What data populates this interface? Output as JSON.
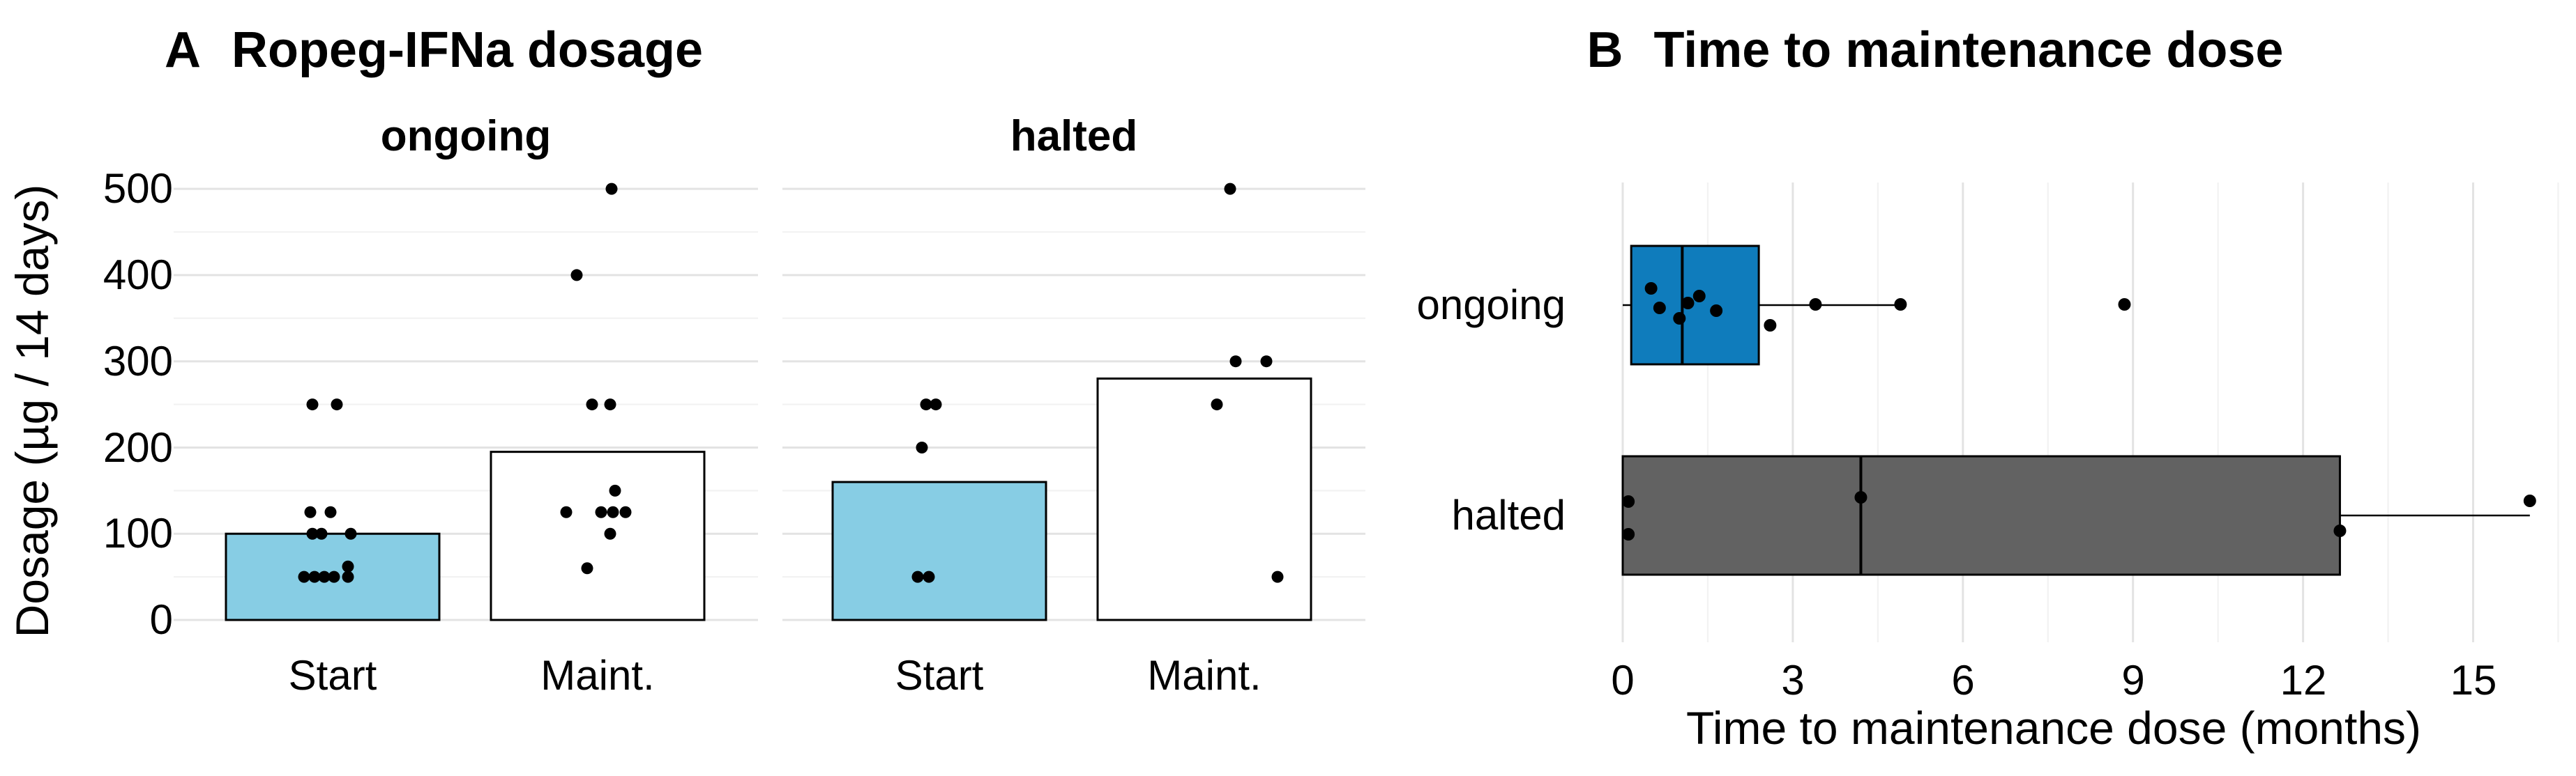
{
  "chart_data": [
    {
      "panel": "A",
      "type": "bar",
      "subtype": "bar-means-with-jittered-points",
      "title_tag": "A",
      "title": "Ropeg-IFNa dosage",
      "ylabel": "Dosage (µg / 14 days)",
      "yticks": [
        0,
        100,
        200,
        300,
        400,
        500
      ],
      "ylim": [
        0,
        525
      ],
      "grid": {
        "orientation": "horizontal",
        "major_every": 100,
        "minor_every": 50,
        "background": "white"
      },
      "colors": {
        "start_bar_fill": "#87CDE4",
        "maint_bar_fill": "#FFFFFF",
        "outline": "#000000",
        "points": "#000000"
      },
      "x_categories": [
        "Start",
        "Maint."
      ],
      "facets": [
        {
          "label": "ongoing",
          "bars": [
            {
              "category": "Start",
              "mean": 100,
              "fill": "#87CDE4",
              "points": [
                {
                  "v": 250,
                  "j": -29
                },
                {
                  "v": 250,
                  "j": 6
                },
                {
                  "v": 125,
                  "j": -32
                },
                {
                  "v": 125,
                  "j": -3
                },
                {
                  "v": 100,
                  "j": -29
                },
                {
                  "v": 100,
                  "j": -16
                },
                {
                  "v": 100,
                  "j": 26
                },
                {
                  "v": 62,
                  "j": 22
                },
                {
                  "v": 50,
                  "j": -41
                },
                {
                  "v": 50,
                  "j": -26
                },
                {
                  "v": 50,
                  "j": -12
                },
                {
                  "v": 50,
                  "j": 2
                },
                {
                  "v": 50,
                  "j": 22
                }
              ]
            },
            {
              "category": "Maint.",
              "mean": 195,
              "fill": "#FFFFFF",
              "points": [
                {
                  "v": 500,
                  "j": 20
                },
                {
                  "v": 400,
                  "j": -30
                },
                {
                  "v": 250,
                  "j": -8
                },
                {
                  "v": 250,
                  "j": 18
                },
                {
                  "v": 150,
                  "j": 25
                },
                {
                  "v": 125,
                  "j": -45
                },
                {
                  "v": 125,
                  "j": 5
                },
                {
                  "v": 125,
                  "j": 22
                },
                {
                  "v": 125,
                  "j": 40
                },
                {
                  "v": 100,
                  "j": 18
                },
                {
                  "v": 60,
                  "j": -15
                }
              ]
            }
          ]
        },
        {
          "label": "halted",
          "bars": [
            {
              "category": "Start",
              "mean": 160,
              "fill": "#87CDE4",
              "points": [
                {
                  "v": 250,
                  "j": -19
                },
                {
                  "v": 250,
                  "j": -5
                },
                {
                  "v": 200,
                  "j": -25
                },
                {
                  "v": 50,
                  "j": -31
                },
                {
                  "v": 50,
                  "j": -15
                }
              ]
            },
            {
              "category": "Maint.",
              "mean": 280,
              "fill": "#FFFFFF",
              "points": [
                {
                  "v": 500,
                  "j": 37
                },
                {
                  "v": 300,
                  "j": 45
                },
                {
                  "v": 300,
                  "j": 89
                },
                {
                  "v": 250,
                  "j": 18
                },
                {
                  "v": 50,
                  "j": 105
                }
              ]
            }
          ]
        }
      ]
    },
    {
      "panel": "B",
      "type": "boxplot",
      "orientation": "horizontal",
      "title_tag": "B",
      "title": "Time to maintenance dose",
      "xlabel": "Time to maintenance dose (months)",
      "xticks": [
        0,
        3,
        6,
        9,
        12,
        15
      ],
      "xlim": [
        -0.3,
        16.6
      ],
      "grid": {
        "orientation": "vertical",
        "major_every": 3,
        "minor_every": 1.5,
        "background": "white"
      },
      "rows": [
        {
          "label": "ongoing",
          "fill": "#0F7CBC",
          "box": {
            "whisker_low": 0,
            "q1": 0.15,
            "median": 1.05,
            "q3": 2.4,
            "whisker_high": 4.9
          },
          "points": [
            {
              "m": 0.5,
              "dy": -24
            },
            {
              "m": 0.65,
              "dy": 4
            },
            {
              "m": 1.0,
              "dy": 19
            },
            {
              "m": 1.15,
              "dy": -3
            },
            {
              "m": 1.35,
              "dy": -13
            },
            {
              "m": 1.65,
              "dy": 8
            },
            {
              "m": 2.6,
              "dy": 29
            },
            {
              "m": 3.4,
              "dy": -1
            },
            {
              "m": 4.9,
              "dy": -1
            },
            {
              "m": 8.85,
              "dy": -1
            }
          ]
        },
        {
          "label": "halted",
          "fill": "#626262",
          "box": {
            "whisker_low": 0,
            "q1": 0,
            "median": 4.2,
            "q3": 12.65,
            "whisker_high": 16.0
          },
          "points": [
            {
              "m": 0.1,
              "dy": -20
            },
            {
              "m": 0.1,
              "dy": 27
            },
            {
              "m": 4.2,
              "dy": -26
            },
            {
              "m": 12.65,
              "dy": 22
            },
            {
              "m": 16.0,
              "dy": -21
            }
          ]
        }
      ]
    }
  ]
}
